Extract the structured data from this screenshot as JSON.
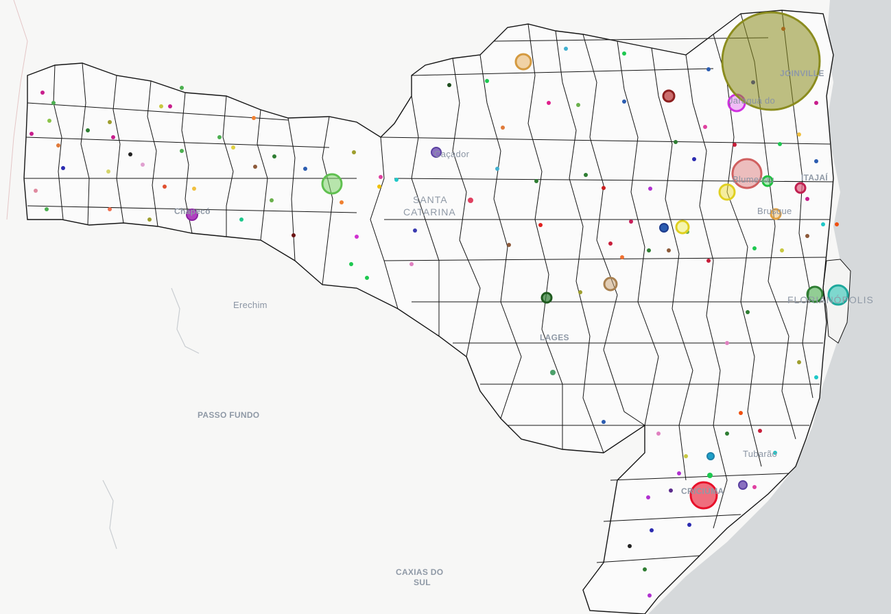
{
  "labels": {
    "joinville": "JOINVILLE",
    "jaragua": "Jaraguá do",
    "cacador": "Caçador",
    "chapeco": "Chapecó",
    "santa_catarina_1": "SANTA",
    "santa_catarina_2": "CATARINA",
    "blumenau": "Blumenau",
    "itajai": "ITAJAÍ",
    "brusque": "Brusque",
    "florianopolis": "FLORIANÓPOLIS",
    "lages": "LAGES",
    "erechim": "Erechim",
    "passo_fundo": "PASSO FUNDO",
    "tubarao": "Tubarão",
    "criciuma": "CRICIÚMA",
    "caxias_1": "CAXIAS DO",
    "caxias_2": "SUL"
  },
  "colors": {
    "ocean": "#d6d9db",
    "land_outside": "#f7f7f6",
    "land_state": "#fbfbfb",
    "border": "#141414",
    "label": "#8a94a3"
  },
  "markers_large": [
    {
      "name": "joinville-circle",
      "color": "#8b8c1e",
      "size": "xl"
    },
    {
      "name": "blumenau-circle",
      "color": "#e08a8a",
      "size": "l"
    },
    {
      "name": "criciuma-circle",
      "color": "#e8102a",
      "size": "l"
    },
    {
      "name": "florianopolis-circle",
      "color": "#2ec4b6",
      "size": "m"
    },
    {
      "name": "west-circle",
      "color": "#7fd36b",
      "size": "m"
    }
  ]
}
